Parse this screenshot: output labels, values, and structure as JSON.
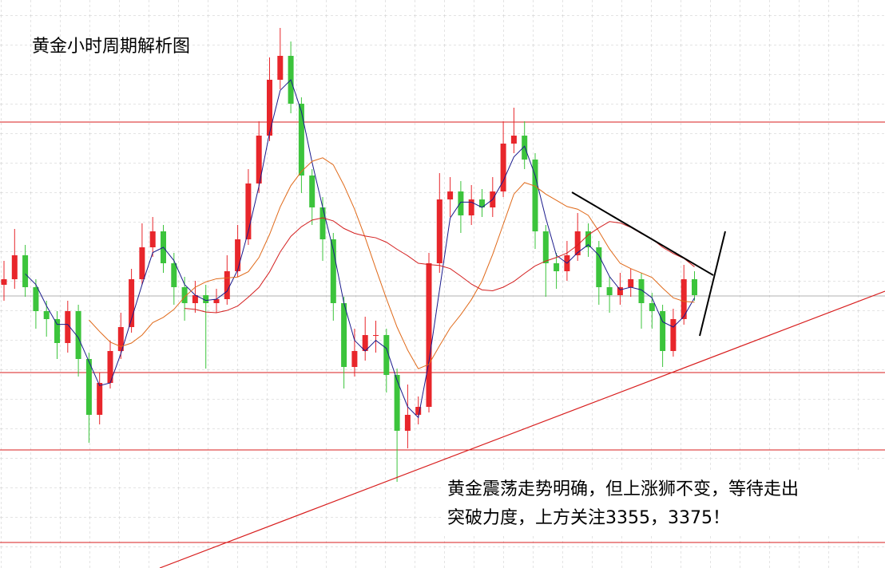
{
  "chart_data": {
    "type": "candlestick",
    "title": "黄金小时周期解析图",
    "annotation": [
      "黄金震荡走势明确，但上涨狮不变，等待走出",
      "突破力度，上方关注3355，3375！"
    ],
    "ylim": [
      0,
      712
    ],
    "up_color": "#e8262b",
    "down_color": "#3cc43c",
    "levels": [
      559,
      245,
      148,
      32
    ],
    "level_color": "#d81e1e",
    "last_price": 341,
    "grid": true,
    "open": [
      355,
      362,
      392,
      352,
      322,
      312,
      282,
      322,
      262,
      192,
      232,
      272,
      302,
      362,
      402,
      422,
      382,
      352,
      332,
      342,
      332,
      337,
      372,
      412,
      482,
      542,
      612,
      642,
      582,
      492,
      452,
      412,
      332,
      252,
      272,
      292,
      292,
      242,
      172,
      192,
      202,
      382,
      462,
      472,
      442,
      462,
      452,
      472,
      532,
      542,
      512,
      422,
      382,
      372,
      392,
      422,
      402,
      352,
      342,
      352,
      362,
      332,
      322,
      272,
      312,
      362
    ],
    "high": [
      385,
      425,
      405,
      362,
      335,
      322,
      335,
      330,
      270,
      245,
      285,
      320,
      375,
      432,
      440,
      430,
      395,
      365,
      360,
      355,
      350,
      392,
      430,
      500,
      560,
      640,
      677,
      660,
      590,
      500,
      465,
      420,
      340,
      300,
      315,
      310,
      300,
      250,
      230,
      215,
      395,
      495,
      490,
      485,
      480,
      475,
      490,
      560,
      577,
      560,
      520,
      430,
      395,
      410,
      445,
      432,
      410,
      365,
      370,
      375,
      370,
      345,
      330,
      325,
      380,
      372
    ],
    "low": [
      335,
      350,
      340,
      300,
      290,
      262,
      270,
      240,
      157,
      180,
      225,
      262,
      295,
      355,
      390,
      370,
      330,
      310,
      320,
      250,
      320,
      330,
      365,
      405,
      470,
      535,
      600,
      570,
      470,
      430,
      385,
      310,
      225,
      240,
      260,
      270,
      220,
      108,
      150,
      180,
      195,
      370,
      440,
      420,
      430,
      440,
      440,
      465,
      520,
      500,
      400,
      340,
      350,
      360,
      385,
      390,
      330,
      320,
      330,
      340,
      300,
      300,
      252,
      265,
      305,
      335
    ],
    "close": [
      362,
      392,
      352,
      322,
      312,
      282,
      322,
      262,
      192,
      232,
      272,
      302,
      362,
      402,
      422,
      382,
      352,
      332,
      342,
      332,
      337,
      372,
      412,
      482,
      542,
      612,
      642,
      582,
      492,
      452,
      412,
      332,
      252,
      272,
      292,
      292,
      242,
      172,
      192,
      202,
      382,
      462,
      472,
      442,
      462,
      452,
      472,
      532,
      542,
      512,
      422,
      382,
      372,
      392,
      422,
      402,
      352,
      342,
      352,
      362,
      332,
      322,
      272,
      312,
      362,
      342
    ]
  }
}
